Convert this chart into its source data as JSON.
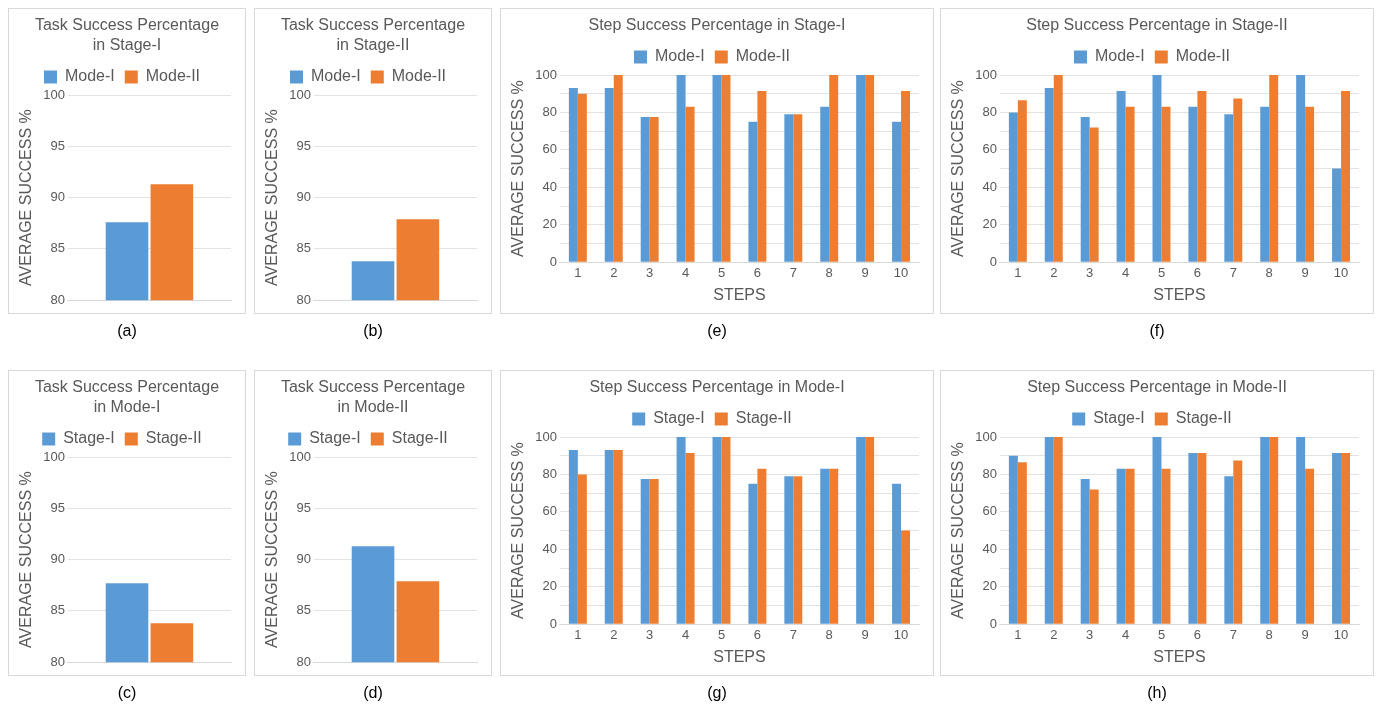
{
  "chart_data": [
    {
      "type": "bar",
      "title": "Task Success Percentage in Stage-I",
      "ylabel": "AVERAGE SUCCESS %",
      "categories": [
        null
      ],
      "series": [
        {
          "name": "Mode-I",
          "color": "#5b9bd5",
          "values": [
            87.6
          ]
        },
        {
          "name": "Mode-II",
          "color": "#ed7d31",
          "values": [
            91.3
          ]
        }
      ],
      "ylim": [
        80,
        100
      ],
      "yticks": [
        80,
        85,
        90,
        95,
        100
      ],
      "grid": "y",
      "legend": "top",
      "tick_labels": "y",
      "annotations": [
        "(a)"
      ]
    },
    {
      "type": "bar",
      "title": "Task Success Percentage in Stage-II",
      "ylabel": "AVERAGE SUCCESS %",
      "categories": [
        null
      ],
      "series": [
        {
          "name": "Mode-I",
          "color": "#5b9bd5",
          "values": [
            83.8
          ]
        },
        {
          "name": "Mode-II",
          "color": "#ed7d31",
          "values": [
            87.9
          ]
        }
      ],
      "ylim": [
        80,
        100
      ],
      "yticks": [
        80,
        85,
        90,
        95,
        100
      ],
      "grid": "y",
      "legend": "top",
      "tick_labels": "y",
      "annotations": [
        "(b)"
      ]
    },
    {
      "type": "bar",
      "title": "Step Success Percentage in Stage-I",
      "xlabel": "STEPS",
      "ylabel": "AVERAGE SUCCESS %",
      "categories": [
        "1",
        "2",
        "3",
        "4",
        "5",
        "6",
        "7",
        "8",
        "9",
        "10"
      ],
      "series": [
        {
          "name": "Mode-I",
          "color": "#5b9bd5",
          "values": [
            93,
            93,
            77.5,
            100,
            100,
            75,
            79,
            83,
            100,
            75
          ]
        },
        {
          "name": "Mode-II",
          "color": "#ed7d31",
          "values": [
            90,
            100,
            77.5,
            83,
            100,
            91.5,
            79,
            100,
            100,
            91.5
          ]
        }
      ],
      "ylim": [
        0,
        100
      ],
      "yticks": [
        0,
        {
          "value": 10,
          "label": null
        },
        20,
        {
          "value": 30,
          "label": null
        },
        40,
        {
          "value": 50,
          "label": null
        },
        60,
        {
          "value": 70,
          "label": null
        },
        80,
        {
          "value": 90,
          "label": null
        },
        100
      ],
      "grid": "y",
      "legend": "top",
      "annotations": [
        "(e)"
      ]
    },
    {
      "type": "bar",
      "title": "Step Success Percentage in Stage-II",
      "xlabel": "STEPS",
      "ylabel": "AVERAGE SUCCESS %",
      "categories": [
        "1",
        "2",
        "3",
        "4",
        "5",
        "6",
        "7",
        "8",
        "9",
        "10"
      ],
      "series": [
        {
          "name": "Mode-I",
          "color": "#5b9bd5",
          "values": [
            80,
            93,
            77.5,
            91.5,
            100,
            83,
            79,
            83,
            100,
            50
          ]
        },
        {
          "name": "Mode-II",
          "color": "#ed7d31",
          "values": [
            86.5,
            100,
            72,
            83,
            83,
            91.5,
            87.5,
            100,
            83,
            91.5
          ]
        }
      ],
      "ylim": [
        0,
        100
      ],
      "yticks": [
        0,
        {
          "value": 10,
          "label": null
        },
        20,
        {
          "value": 30,
          "label": null
        },
        40,
        {
          "value": 50,
          "label": null
        },
        60,
        {
          "value": 70,
          "label": null
        },
        80,
        {
          "value": 90,
          "label": null
        },
        100
      ],
      "grid": "y",
      "legend": "top",
      "annotations": [
        "(f)"
      ]
    },
    {
      "type": "bar",
      "title": "Task Success Percentage in Mode-I",
      "ylabel": "AVERAGE SUCCESS %",
      "categories": [
        null
      ],
      "series": [
        {
          "name": "Stage-I",
          "color": "#5b9bd5",
          "values": [
            87.7
          ]
        },
        {
          "name": "Stage-II",
          "color": "#ed7d31",
          "values": [
            83.8
          ]
        }
      ],
      "ylim": [
        80,
        100
      ],
      "yticks": [
        80,
        85,
        90,
        95,
        100
      ],
      "grid": "y",
      "legend": "top",
      "tick_labels": "y",
      "annotations": [
        "(c)"
      ]
    },
    {
      "type": "bar",
      "title": "Task Success Percentage in Mode-II",
      "ylabel": "AVERAGE SUCCESS %",
      "categories": [
        null
      ],
      "series": [
        {
          "name": "Stage-I",
          "color": "#5b9bd5",
          "values": [
            91.3
          ]
        },
        {
          "name": "Stage-II",
          "color": "#ed7d31",
          "values": [
            87.9
          ]
        }
      ],
      "ylim": [
        80,
        100
      ],
      "yticks": [
        80,
        85,
        90,
        95,
        100
      ],
      "grid": "y",
      "legend": "top",
      "tick_labels": "y",
      "annotations": [
        "(d)"
      ]
    },
    {
      "type": "bar",
      "title": "Step Success Percentage in Mode-I",
      "xlabel": "STEPS",
      "ylabel": "AVERAGE SUCCESS %",
      "categories": [
        "1",
        "2",
        "3",
        "4",
        "5",
        "6",
        "7",
        "8",
        "9",
        "10"
      ],
      "series": [
        {
          "name": "Stage-I",
          "color": "#5b9bd5",
          "values": [
            93,
            93,
            77.5,
            100,
            100,
            75,
            79,
            83,
            100,
            75
          ]
        },
        {
          "name": "Stage-II",
          "color": "#ed7d31",
          "values": [
            80,
            93,
            77.5,
            91.5,
            100,
            83,
            79,
            83,
            100,
            50
          ]
        }
      ],
      "ylim": [
        0,
        100
      ],
      "yticks": [
        0,
        {
          "value": 10,
          "label": null
        },
        20,
        {
          "value": 30,
          "label": null
        },
        40,
        {
          "value": 50,
          "label": null
        },
        60,
        {
          "value": 70,
          "label": null
        },
        80,
        {
          "value": 90,
          "label": null
        },
        100
      ],
      "grid": "y",
      "legend": "top",
      "annotations": [
        "(g)"
      ]
    },
    {
      "type": "bar",
      "title": "Step Success Percentage in Mode-II",
      "xlabel": "STEPS",
      "ylabel": "AVERAGE SUCCESS %",
      "categories": [
        "1",
        "2",
        "3",
        "4",
        "5",
        "6",
        "7",
        "8",
        "9",
        "10"
      ],
      "series": [
        {
          "name": "Stage-I",
          "color": "#5b9bd5",
          "values": [
            90,
            100,
            77.5,
            83,
            100,
            91.5,
            79,
            100,
            100,
            91.5
          ]
        },
        {
          "name": "Stage-II",
          "color": "#ed7d31",
          "values": [
            86.5,
            100,
            72,
            83,
            83,
            91.5,
            87.5,
            100,
            83,
            91.5
          ]
        }
      ],
      "ylim": [
        0,
        100
      ],
      "yticks": [
        0,
        {
          "value": 10,
          "label": null
        },
        20,
        {
          "value": 30,
          "label": null
        },
        40,
        {
          "value": 50,
          "label": null
        },
        60,
        {
          "value": 70,
          "label": null
        },
        80,
        {
          "value": 90,
          "label": null
        },
        100
      ],
      "grid": "y",
      "legend": "top",
      "annotations": [
        "(h)"
      ]
    }
  ]
}
